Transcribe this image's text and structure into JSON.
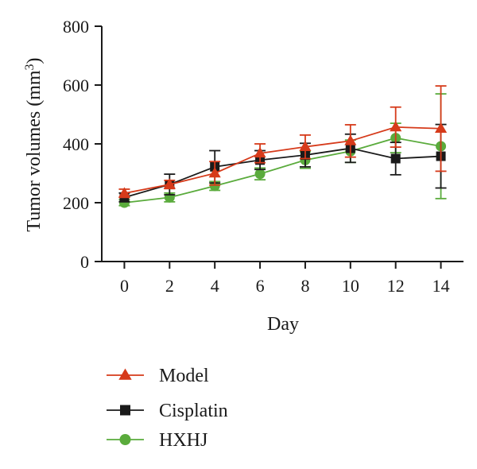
{
  "chart_data": {
    "type": "line",
    "xlabel": "Day",
    "ylabel": "Tumor volumes (mm",
    "ylabel_sup": "3",
    "ylabel_close": ")",
    "x": [
      0,
      2,
      4,
      6,
      8,
      10,
      12,
      14
    ],
    "xlim": [
      -1,
      15
    ],
    "ylim": [
      0,
      800
    ],
    "xticks": [
      0,
      2,
      4,
      6,
      8,
      10,
      12,
      14
    ],
    "yticks": [
      0,
      200,
      400,
      600,
      800
    ],
    "grid": false,
    "legend_position": "bottom",
    "series": [
      {
        "name": "Model",
        "color": "#d63a1a",
        "marker": "triangle",
        "values": [
          232,
          262,
          300,
          368,
          390,
          410,
          457,
          452
        ],
        "error": [
          14,
          14,
          40,
          32,
          40,
          55,
          68,
          145
        ]
      },
      {
        "name": "Cisplatin",
        "color": "#1a1a1a",
        "marker": "square",
        "values": [
          218,
          262,
          322,
          345,
          362,
          385,
          350,
          358
        ],
        "error": [
          15,
          35,
          55,
          32,
          40,
          48,
          55,
          108
        ]
      },
      {
        "name": "HXHJ",
        "color": "#5aab3c",
        "marker": "circle",
        "values": [
          200,
          218,
          257,
          298,
          345,
          375,
          420,
          392
        ],
        "error": [
          10,
          15,
          15,
          20,
          28,
          38,
          50,
          178
        ]
      }
    ]
  }
}
